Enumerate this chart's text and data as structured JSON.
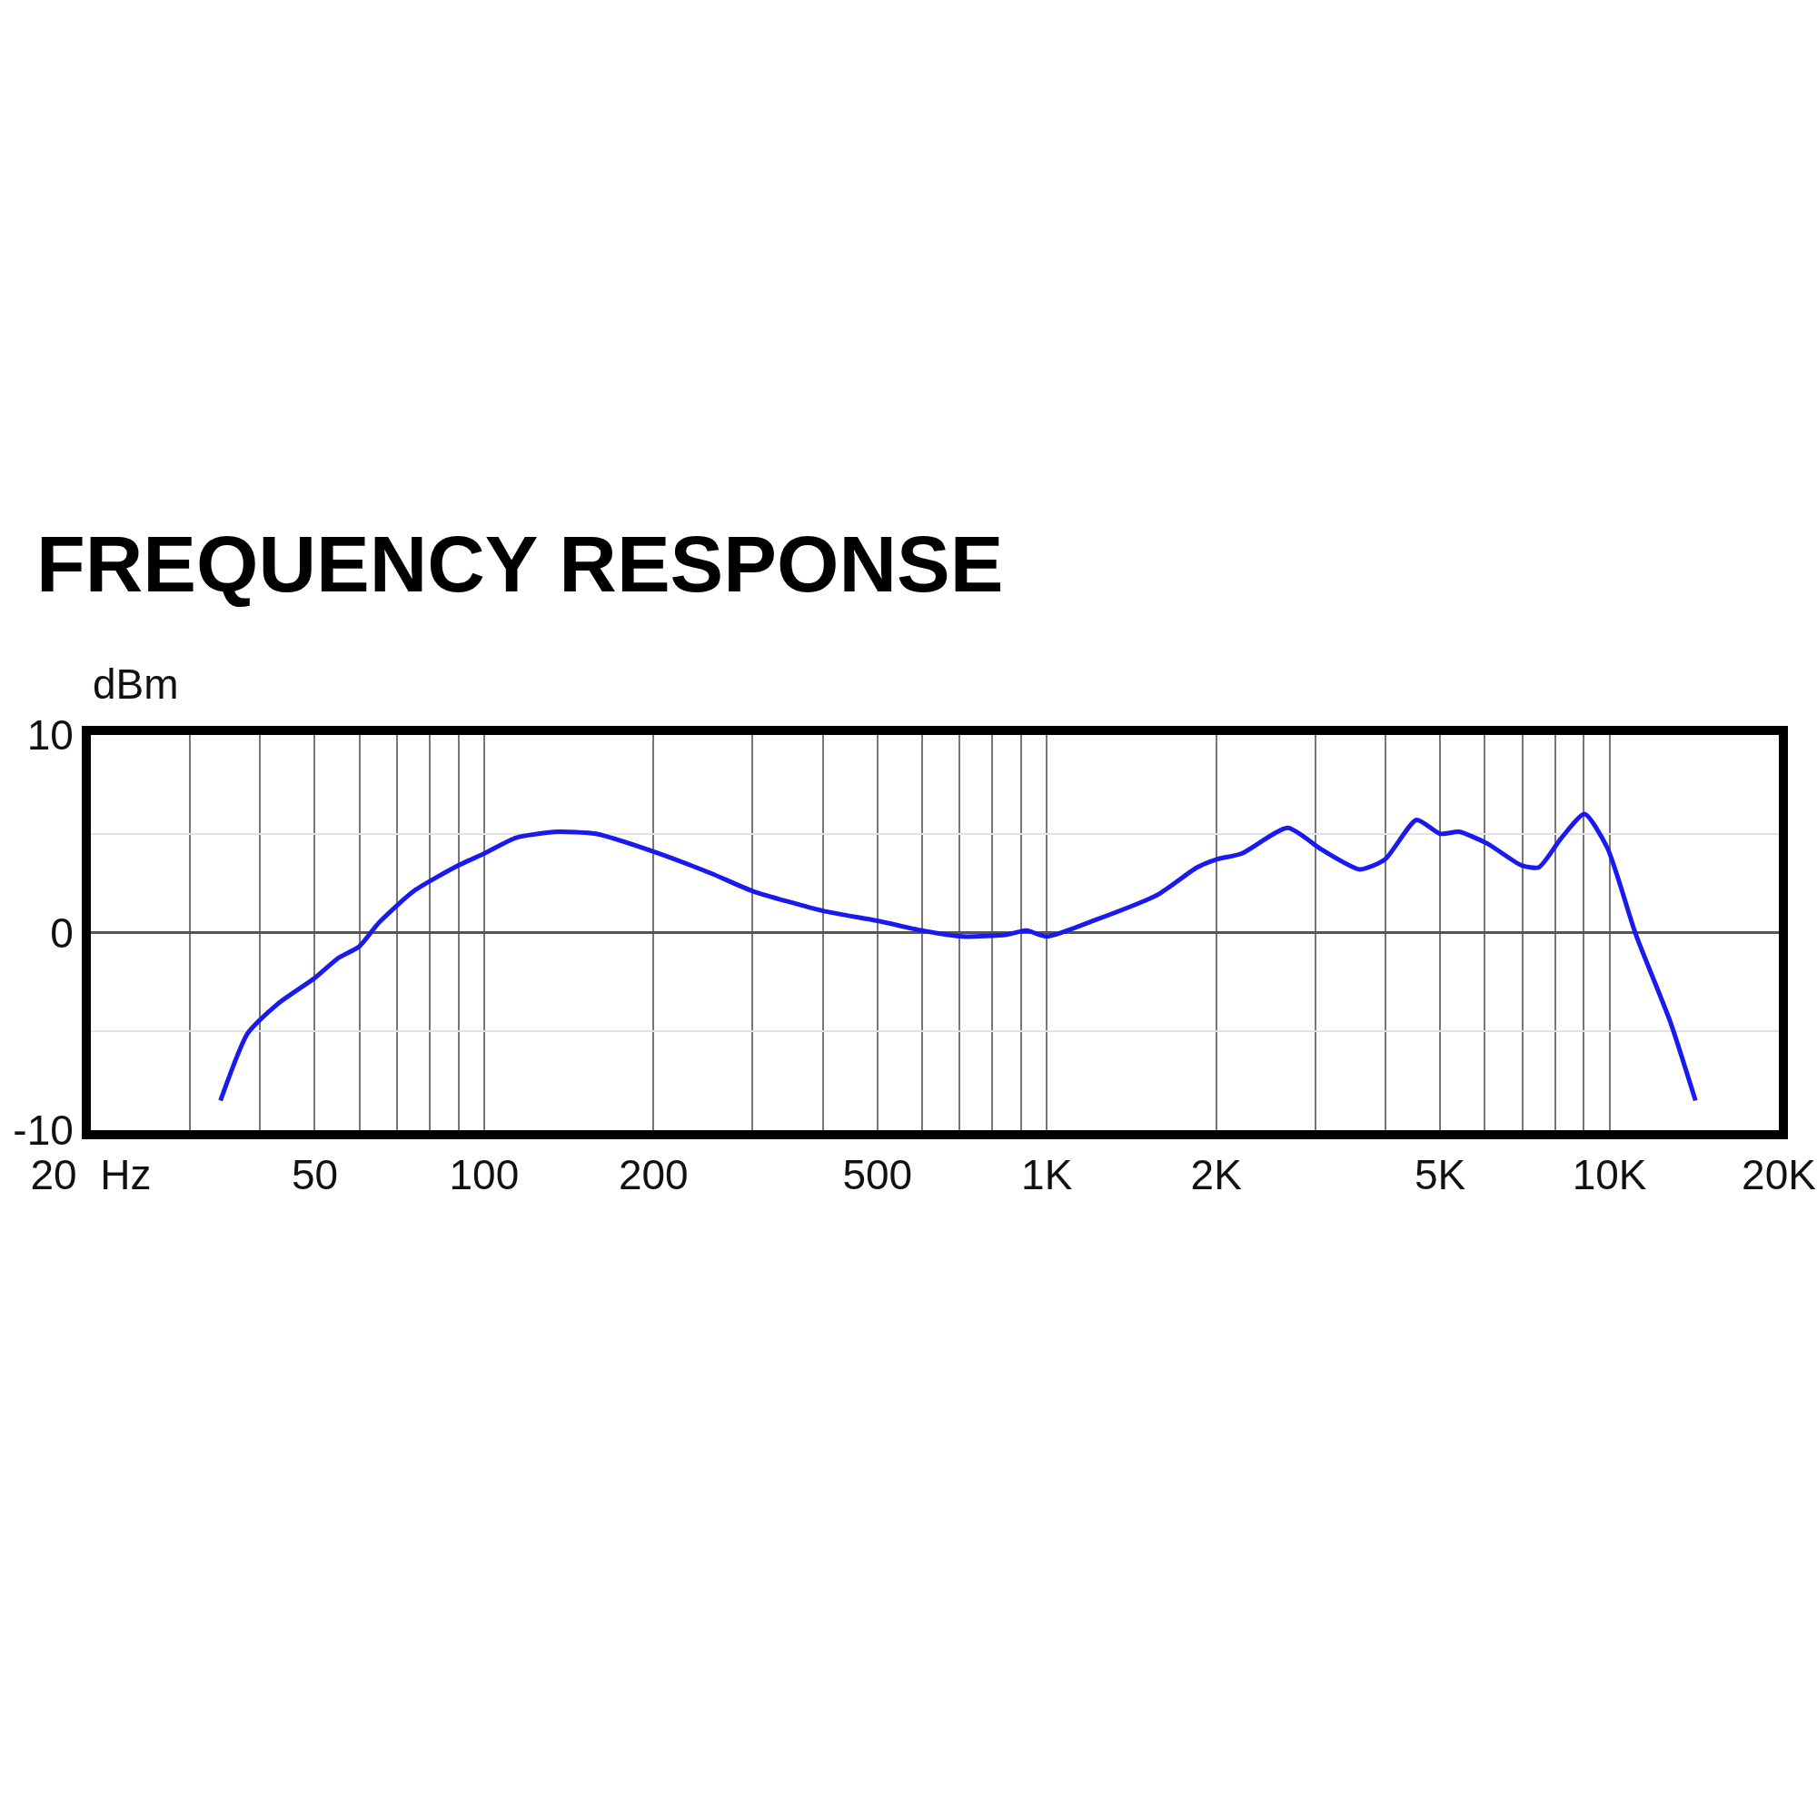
{
  "chart_data": {
    "type": "line",
    "title": "FREQUENCY RESPONSE",
    "ylabel": "dBm",
    "log": "x",
    "grid": true,
    "xlim": [
      20,
      20000
    ],
    "ylim": [
      -10,
      10
    ],
    "xticks": [
      {
        "value": 20,
        "label": "20  Hz"
      },
      {
        "value": 30,
        "label": null
      },
      {
        "value": 40,
        "label": null
      },
      50,
      {
        "value": 60,
        "label": null
      },
      {
        "value": 70,
        "label": null
      },
      {
        "value": 80,
        "label": null
      },
      {
        "value": 90,
        "label": null
      },
      100,
      200,
      {
        "value": 300,
        "label": null
      },
      {
        "value": 400,
        "label": null
      },
      500,
      {
        "value": 600,
        "label": null
      },
      {
        "value": 700,
        "label": null
      },
      {
        "value": 800,
        "label": null
      },
      {
        "value": 900,
        "label": null
      },
      {
        "value": 1000,
        "label": "1K"
      },
      {
        "value": 2000,
        "label": "2K"
      },
      {
        "value": 3000,
        "label": null
      },
      {
        "value": 4000,
        "label": null
      },
      {
        "value": 5000,
        "label": "5K"
      },
      {
        "value": 6000,
        "label": null
      },
      {
        "value": 7000,
        "label": null
      },
      {
        "value": 8000,
        "label": null
      },
      {
        "value": 9000,
        "label": null
      },
      {
        "value": 10000,
        "label": "10K"
      },
      {
        "value": 20000,
        "label": "20K"
      }
    ],
    "yticks": [
      -10,
      {
        "value": -5,
        "label": null
      },
      0,
      {
        "value": 5,
        "label": null
      },
      10
    ],
    "x": [
      34,
      38,
      43,
      50,
      55,
      60,
      65,
      75,
      90,
      100,
      114,
      135,
      158,
      200,
      253,
      300,
      400,
      500,
      600,
      710,
      850,
      920,
      1000,
      1210,
      1570,
      1850,
      2000,
      2220,
      2680,
      3080,
      3600,
      3990,
      4540,
      5000,
      5400,
      6070,
      6980,
      7490,
      8220,
      9030,
      9910,
      11140,
      12820,
      14220
    ],
    "series": [
      {
        "color": "#1a1aee",
        "values": [
          -8.5,
          -5.1,
          -3.6,
          -2.3,
          -1.3,
          -0.7,
          0.5,
          2.1,
          3.4,
          4.0,
          4.8,
          5.1,
          5.0,
          4.1,
          3.0,
          2.1,
          1.1,
          0.6,
          0.1,
          -0.2,
          -0.1,
          0.1,
          -0.2,
          0.6,
          1.9,
          3.3,
          3.7,
          4.0,
          5.3,
          4.2,
          3.2,
          3.7,
          5.7,
          5.0,
          5.1,
          4.5,
          3.4,
          3.3,
          4.8,
          6.0,
          4.3,
          -0.1,
          -4.5,
          -8.5
        ]
      }
    ]
  }
}
